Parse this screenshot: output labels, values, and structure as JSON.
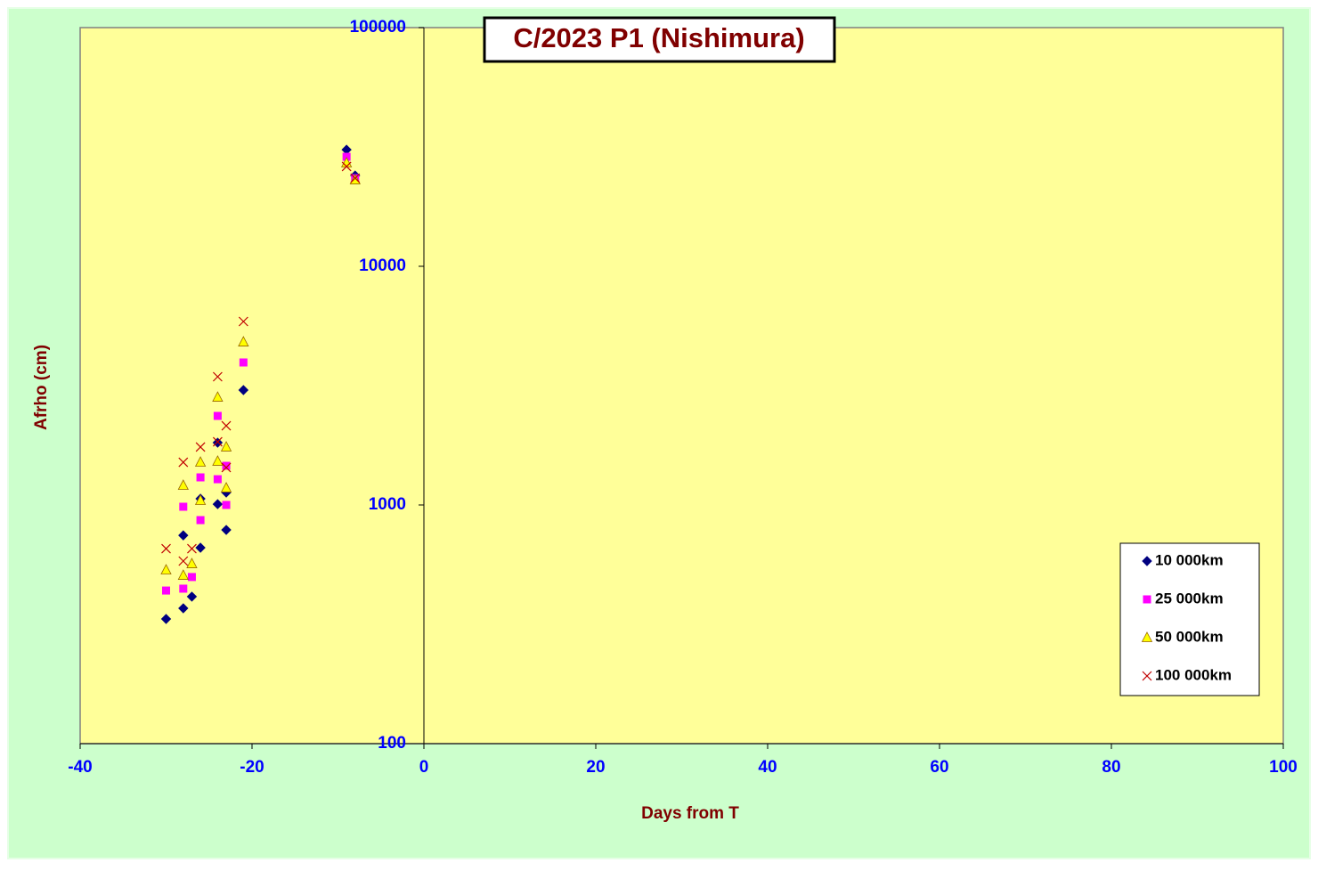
{
  "chart_data": {
    "type": "scatter",
    "title": "C/2023 P1 (Nishimura)",
    "x_label": "Days from T",
    "y_label": "Afrho (cm)",
    "xlim": [
      -40,
      100
    ],
    "xticks": [
      -40,
      -20,
      0,
      20,
      40,
      60,
      80,
      100
    ],
    "ylim": [
      100,
      100000
    ],
    "yticks": [
      100,
      1000,
      10000,
      100000
    ],
    "y_scale": "log",
    "legend": "lower right",
    "series": [
      {
        "name": "10 000km",
        "color": "#000080",
        "marker": "diamond",
        "x": [
          -30,
          -28,
          -28,
          -27,
          -26,
          -26,
          -24,
          -24,
          -23,
          -23,
          -21,
          -9,
          -8
        ],
        "values": [
          333,
          369,
          746,
          413,
          662,
          1062,
          1008,
          1824,
          786,
          1128,
          3029,
          30800,
          24000
        ]
      },
      {
        "name": "25 000km",
        "color": "#ff00ff",
        "marker": "square",
        "x": [
          -30,
          -28,
          -28,
          -27,
          -26,
          -26,
          -24,
          -24,
          -23,
          -23,
          -21,
          -9,
          -8
        ],
        "values": [
          438,
          446,
          983,
          499,
          864,
          1305,
          1282,
          2361,
          1000,
          1459,
          3954,
          28760,
          23400
        ]
      },
      {
        "name": "50 000km",
        "color": "#ffff00",
        "marker": "triangle",
        "x": [
          -30,
          -28,
          -28,
          -27,
          -26,
          -26,
          -24,
          -24,
          -23,
          -23,
          -21,
          -9,
          -8
        ],
        "values": [
          534,
          507,
          1208,
          567,
          1044,
          1510,
          1524,
          2826,
          1178,
          1749,
          4816,
          27100,
          23000
        ]
      },
      {
        "name": "100 000km",
        "color": "#c00000",
        "marker": "x",
        "x": [
          -30,
          -28,
          -28,
          -27,
          -26,
          -24,
          -24,
          -23,
          -23,
          -21,
          -9,
          -8
        ],
        "values": [
          656,
          582,
          1510,
          656,
          1749,
          3446,
          1840,
          2148,
          1435,
          5870,
          26200,
          23400
        ]
      }
    ]
  }
}
